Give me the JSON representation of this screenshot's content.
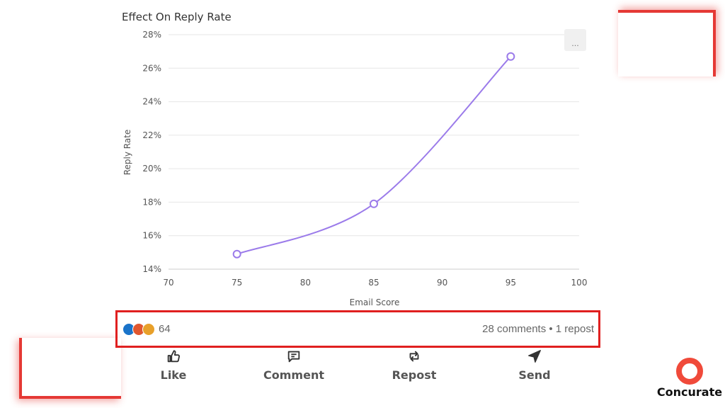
{
  "chart_data": {
    "type": "line",
    "title": "Effect On Reply Rate",
    "xlabel": "Email Score",
    "ylabel": "Reply Rate",
    "xlim": [
      70,
      100
    ],
    "ylim": [
      14,
      28
    ],
    "x_ticks": [
      "70",
      "75",
      "80",
      "85",
      "90",
      "95",
      "100"
    ],
    "y_ticks": [
      "14%",
      "16%",
      "18%",
      "20%",
      "22%",
      "24%",
      "26%",
      "28%"
    ],
    "series": [
      {
        "x": [
          75,
          85,
          95
        ],
        "y": [
          14.9,
          17.9,
          26.7
        ]
      }
    ],
    "grid": true,
    "line_color": "#9b7bea"
  },
  "menu": {
    "label": "..."
  },
  "engagement": {
    "reaction_count": "64",
    "reactions": [
      "like-icon",
      "celebrate-icon",
      "insightful-icon"
    ],
    "stats_text": "28 comments • 1 repost"
  },
  "actions": {
    "like": "Like",
    "comment": "Comment",
    "repost": "Repost",
    "send": "Send"
  },
  "brand": {
    "name": "Concurate",
    "accent_color": "#e53935"
  }
}
